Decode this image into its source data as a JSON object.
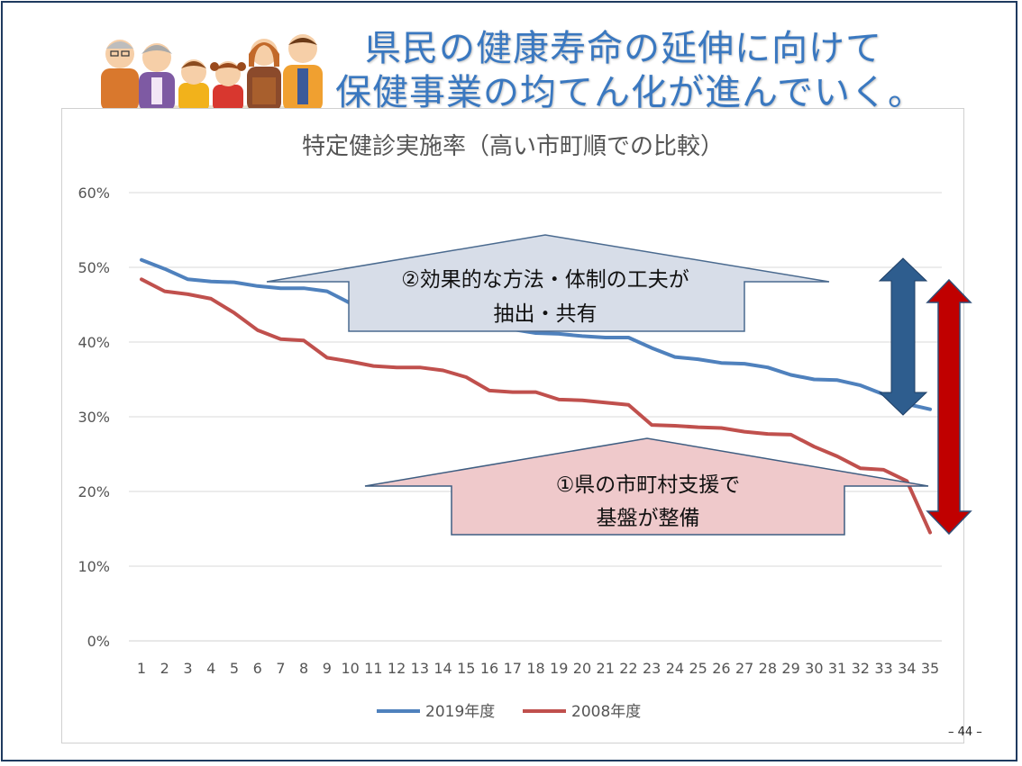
{
  "slide": {
    "title_line1": "県民の健康寿命の延伸に向けて",
    "title_line2": "保健事業の均てん化が進んでいく。",
    "page_number": "– 44 –"
  },
  "callouts": {
    "upper_line1": "②効果的な方法・体制の工夫が",
    "upper_line2": "抽出・共有",
    "lower_line1": "①県の市町村支援で",
    "lower_line2": "基盤が整備"
  },
  "colors": {
    "series_2019": "#4f81bd",
    "series_2008": "#c0504d",
    "upper_arrow_fill": "#d7dde8",
    "lower_arrow_fill": "#efc9cb",
    "double_arrow_blue": "#2e5d8e",
    "double_arrow_red": "#c00000"
  },
  "chart_data": {
    "type": "line",
    "title": "特定健診実施率（高い市町順での比較）",
    "xlabel": "",
    "ylabel": "",
    "ylim": [
      0,
      60
    ],
    "y_ticks": [
      0,
      10,
      20,
      30,
      40,
      50,
      60
    ],
    "y_tick_labels": [
      "0%",
      "10%",
      "20%",
      "30%",
      "40%",
      "50%",
      "60%"
    ],
    "categories": [
      "1",
      "2",
      "3",
      "4",
      "5",
      "6",
      "7",
      "8",
      "9",
      "10",
      "11",
      "12",
      "13",
      "14",
      "15",
      "16",
      "17",
      "18",
      "19",
      "20",
      "21",
      "22",
      "23",
      "24",
      "25",
      "26",
      "27",
      "28",
      "29",
      "30",
      "31",
      "32",
      "33",
      "34",
      "35"
    ],
    "legend_position": "bottom",
    "grid": true,
    "series": [
      {
        "name": "2019年度",
        "color": "#4f81bd",
        "values": [
          51.0,
          49.8,
          48.4,
          48.1,
          48.0,
          47.5,
          47.2,
          47.2,
          46.8,
          45.2,
          45.1,
          43.5,
          42.7,
          42.6,
          42.5,
          42.0,
          41.7,
          41.2,
          41.1,
          40.8,
          40.6,
          40.6,
          39.2,
          38.0,
          37.7,
          37.2,
          37.1,
          36.6,
          35.6,
          35.0,
          34.9,
          34.2,
          33.0,
          31.7,
          31.0
        ]
      },
      {
        "name": "2008年度",
        "color": "#c0504d",
        "values": [
          48.4,
          46.8,
          46.4,
          45.8,
          43.9,
          41.6,
          40.4,
          40.2,
          37.9,
          37.4,
          36.8,
          36.6,
          36.6,
          36.2,
          35.3,
          33.5,
          33.3,
          33.3,
          32.3,
          32.2,
          31.9,
          31.6,
          28.9,
          28.8,
          28.6,
          28.5,
          28.0,
          27.7,
          27.6,
          26.0,
          24.7,
          23.1,
          22.9,
          21.4,
          14.5
        ]
      }
    ]
  }
}
